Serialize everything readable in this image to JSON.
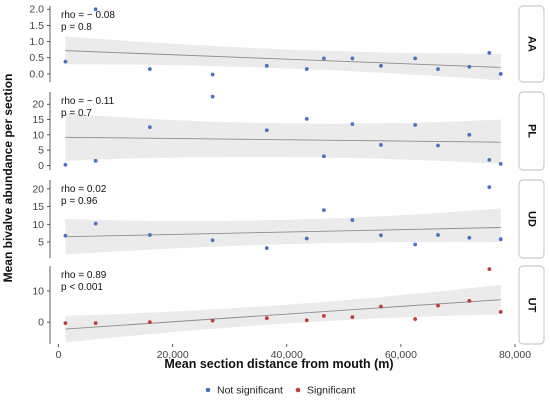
{
  "chart_data": {
    "type": "scatter",
    "xlabel": "Mean section distance from mouth (m)",
    "ylabel": "Mean bivalve abundance per section",
    "xlim": [
      -1500,
      80000
    ],
    "x_ticks": [
      0,
      20000,
      40000,
      60000,
      80000
    ],
    "x_tick_labels": [
      "0",
      "20,000",
      "40,000",
      "60,000",
      "80,000"
    ],
    "grid": false,
    "legend_position": "bottom",
    "legend": [
      {
        "key": "not_significant",
        "label": "Not significant",
        "color": "#4a72c4"
      },
      {
        "key": "significant",
        "label": "Significant",
        "color": "#c23b3b"
      }
    ],
    "panels": [
      {
        "strip": "AA",
        "rho_text": "rho = − 0.08",
        "p_text": "p = 0.8",
        "group": "not_significant",
        "ylim": [
          -0.25,
          2.1
        ],
        "y_ticks": [
          0.0,
          0.5,
          1.0,
          1.5,
          2.0
        ],
        "y_tick_labels": [
          "0.0",
          "0.5",
          "1.0",
          "1.5",
          "2.0"
        ],
        "fit": {
          "y_start": 0.72,
          "y_end": 0.2
        },
        "band": {
          "lower_start": 0.3,
          "upper_start": 1.16,
          "lower_mid": 0.3,
          "upper_mid": 0.63,
          "lower_end": -0.2,
          "upper_end": 0.62
        },
        "x": [
          1200,
          6500,
          16000,
          27000,
          36500,
          43500,
          46500,
          51500,
          56500,
          62500,
          66500,
          72000,
          75500,
          77500
        ],
        "y": [
          0.38,
          2.0,
          0.15,
          -0.02,
          0.25,
          0.15,
          0.48,
          0.48,
          0.25,
          0.48,
          0.15,
          0.22,
          0.65,
          0.0
        ]
      },
      {
        "strip": "PL",
        "rho_text": "rho = − 0.11",
        "p_text": "p = 0.7",
        "group": "not_significant",
        "ylim": [
          -1.5,
          24
        ],
        "y_ticks": [
          0,
          5,
          10,
          15,
          20
        ],
        "y_tick_labels": [
          "0",
          "5",
          "10",
          "15",
          "20"
        ],
        "fit": {
          "y_start": 9.2,
          "y_end": 7.6
        },
        "band": {
          "lower_start": 1.5,
          "upper_start": 17.0,
          "lower_mid": 4.5,
          "upper_mid": 11.5,
          "lower_end": 0.5,
          "upper_end": 15.0
        },
        "x": [
          1200,
          6500,
          16000,
          27000,
          36500,
          43500,
          46500,
          51500,
          56500,
          62500,
          66500,
          72000,
          75500,
          77500
        ],
        "y": [
          0.2,
          1.5,
          12.5,
          22.5,
          11.5,
          15.2,
          3.0,
          13.5,
          6.7,
          13.2,
          6.5,
          10.0,
          1.8,
          0.5
        ]
      },
      {
        "strip": "UD",
        "rho_text": "rho = 0.02",
        "p_text": "p = 0.96",
        "group": "not_significant",
        "ylim": [
          0.5,
          22.5
        ],
        "y_ticks": [
          5,
          10,
          15,
          20
        ],
        "y_tick_labels": [
          "5",
          "10",
          "15",
          "20"
        ],
        "fit": {
          "y_start": 6.5,
          "y_end": 9.1
        },
        "band": {
          "lower_start": 1.5,
          "upper_start": 11.5,
          "lower_mid": 5.5,
          "upper_mid": 9.5,
          "lower_end": 5.0,
          "upper_end": 14.5
        },
        "x": [
          1200,
          6500,
          16000,
          27000,
          36500,
          43500,
          46500,
          51500,
          56500,
          62500,
          66500,
          72000,
          75500,
          77500
        ],
        "y": [
          6.8,
          10.2,
          7.0,
          5.5,
          3.3,
          6.0,
          14.0,
          11.2,
          6.9,
          4.3,
          7.0,
          6.2,
          20.5,
          5.8
        ]
      },
      {
        "strip": "UT",
        "rho_text": "rho = 0.89",
        "p_text": "p < 0.001",
        "group": "significant",
        "ylim": [
          -7,
          18
        ],
        "y_ticks": [
          0,
          10
        ],
        "y_tick_labels": [
          "0",
          "10"
        ],
        "fit": {
          "y_start": -2.2,
          "y_end": 7.2
        },
        "band": {
          "lower_start": -6.5,
          "upper_start": 2.0,
          "lower_mid": 1.0,
          "upper_mid": 4.0,
          "lower_end": 2.5,
          "upper_end": 12.0
        },
        "x": [
          1200,
          6500,
          16000,
          27000,
          36500,
          43500,
          46500,
          51500,
          56500,
          62500,
          66500,
          72000,
          75500,
          77500
        ],
        "y": [
          -0.3,
          -0.3,
          0.0,
          0.5,
          1.3,
          0.6,
          2.0,
          1.6,
          5.0,
          1.0,
          5.3,
          6.8,
          17.0,
          3.3
        ]
      }
    ]
  }
}
